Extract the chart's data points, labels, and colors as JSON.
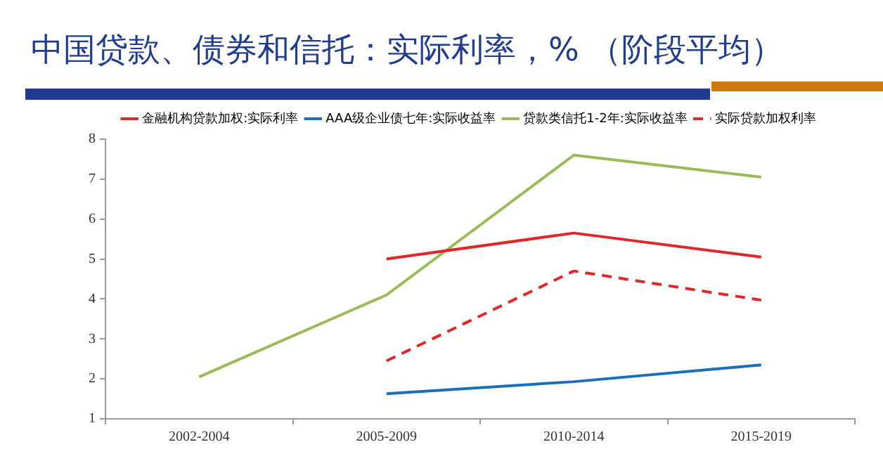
{
  "chart_data": {
    "type": "line",
    "title": "中国贷款、债券和信托：实际利率，% （阶段平均）",
    "categories": [
      "2002-2004",
      "2005-2009",
      "2010-2014",
      "2015-2019"
    ],
    "series": [
      {
        "name": "金融机构贷款加权:实际利率",
        "color": "#e0282a",
        "values": [
          null,
          5.0,
          5.65,
          5.05
        ]
      },
      {
        "name": "AAA级企业债七年:实际收益率",
        "color": "#1a6fb8",
        "values": [
          null,
          1.63,
          1.93,
          2.35
        ]
      },
      {
        "name": "贷款类信托1-2年:实际收益率",
        "color": "#9bbb59",
        "values": [
          2.05,
          4.1,
          7.6,
          7.05
        ]
      },
      {
        "name": "实际贷款加权利率",
        "color": "#e0282a",
        "line_style": "dashed",
        "values": [
          null,
          2.45,
          4.7,
          3.97
        ]
      }
    ],
    "ylim": [
      1,
      8
    ],
    "yticks": [
      1,
      2,
      3,
      4,
      5,
      6,
      7,
      8
    ],
    "legend": "top",
    "marker": "none",
    "line_style": "solid"
  }
}
